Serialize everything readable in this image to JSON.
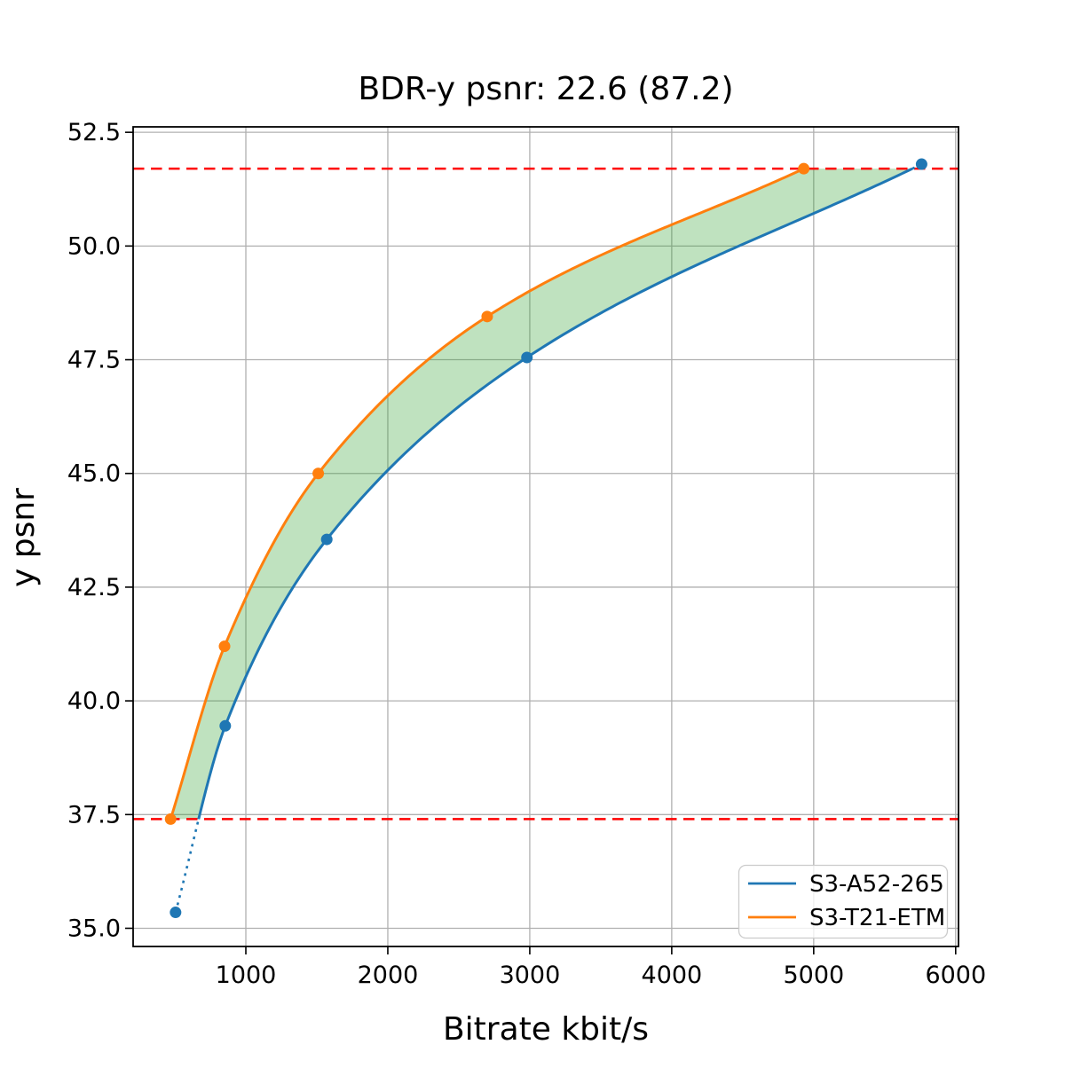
{
  "chart_data": {
    "type": "line",
    "title": "BDR-y psnr: 22.6 (87.2)",
    "xlabel": "Bitrate kbit/s",
    "ylabel": "y psnr",
    "xlim": [
      206,
      6020
    ],
    "ylim": [
      34.6,
      52.62
    ],
    "xticks": [
      1000,
      2000,
      3000,
      4000,
      5000,
      6000
    ],
    "yticks": [
      35.0,
      37.5,
      40.0,
      42.5,
      45.0,
      47.5,
      50.0,
      52.5
    ],
    "grid": true,
    "grid_color": "#b0b0b0",
    "legend_position": "lower right",
    "series": [
      {
        "name": "S3-A52-265",
        "color": "#1f77b4",
        "marker": "circle",
        "x": [
          505,
          855,
          1570,
          2980,
          5760
        ],
        "y": [
          35.35,
          39.45,
          43.55,
          47.55,
          51.8
        ]
      },
      {
        "name": "S3-T21-ETM",
        "color": "#ff7f0e",
        "marker": "circle",
        "x": [
          470,
          850,
          1510,
          2700,
          4930
        ],
        "y": [
          37.4,
          41.2,
          45.0,
          48.45,
          51.7
        ]
      }
    ],
    "hlines": [
      {
        "y": 51.7,
        "color": "#ff0000",
        "style": "dashed"
      },
      {
        "y": 37.4,
        "color": "#ff0000",
        "style": "dashed"
      }
    ],
    "shaded_region": {
      "between": [
        "S3-T21-ETM",
        "S3-A52-265"
      ],
      "y_range": [
        37.4,
        51.7
      ],
      "color": "#2ca02c",
      "alpha": 0.3
    }
  }
}
